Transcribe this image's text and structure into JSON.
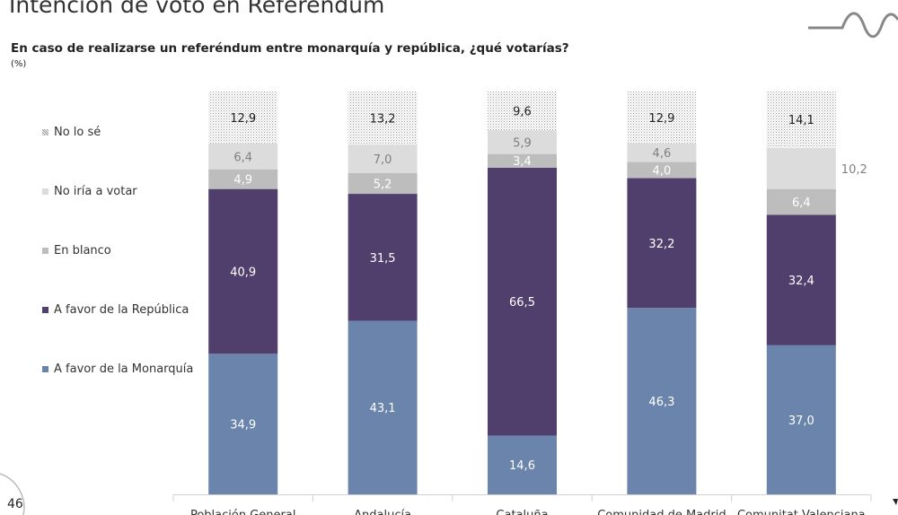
{
  "header": {
    "title": "Intención de voto en Referéndum",
    "subtitle": "En caso de realizarse un referéndum entre monarquía y república, ¿qué votarías?",
    "unit": "(%)"
  },
  "footer": {
    "page_number": "46"
  },
  "chart_data": {
    "type": "bar",
    "stacked": true,
    "categories": [
      "Población General",
      "Andalucía",
      "Cataluña",
      "Comunidad de Madrid",
      "Comunitat Valenciana"
    ],
    "series": [
      {
        "name": "A favor de la Monarquía",
        "color": "#6a84ab",
        "label_color": "#ffffff",
        "values": [
          34.9,
          43.1,
          14.6,
          46.3,
          37.0
        ],
        "labels": [
          "34,9",
          "43,1",
          "14,6",
          "46,3",
          "37,0"
        ]
      },
      {
        "name": "A favor de la República",
        "color": "#503f6c",
        "label_color": "#ffffff",
        "values": [
          40.9,
          31.5,
          66.5,
          32.2,
          32.4
        ],
        "labels": [
          "40,9",
          "31,5",
          "66,5",
          "32,2",
          "32,4"
        ]
      },
      {
        "name": "En blanco",
        "color": "#bdbdbd",
        "label_color": "#ffffff",
        "values": [
          4.9,
          5.2,
          3.4,
          4.0,
          6.4
        ],
        "labels": [
          "4,9",
          "5,2",
          "3,4",
          "4,0",
          "6,4"
        ]
      },
      {
        "name": "No iría a votar",
        "color": "#dcdcdc",
        "label_color": "#7f7f7f",
        "values": [
          6.4,
          7.0,
          5.9,
          4.6,
          10.2
        ],
        "labels": [
          "6,4",
          "7,0",
          "5,9",
          "4,6",
          "10,2"
        ]
      },
      {
        "name": "No lo sé",
        "color": "dotted",
        "label_color": "#222222",
        "values": [
          12.9,
          13.2,
          9.6,
          12.9,
          14.1
        ],
        "labels": [
          "12,9",
          "13,2",
          "9,6",
          "12,9",
          "14,1"
        ]
      }
    ],
    "ylim": [
      0,
      100
    ],
    "grid": false,
    "legend": "left"
  }
}
